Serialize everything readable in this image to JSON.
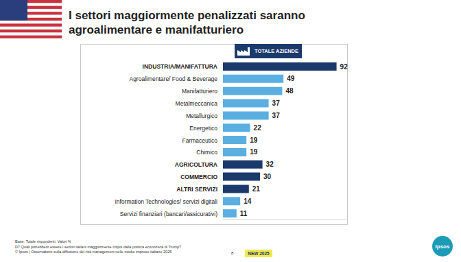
{
  "title": "I settori maggiormente penalizzati saranno agroalimentare e manifatturiero",
  "column_label": "TOTALE AZIENDE",
  "chart_data": {
    "type": "bar",
    "orientation": "horizontal",
    "categories": [
      "INDUSTRIA/MANIFATTURA",
      "Agroalimentare/ Food & Beverage",
      "Manifatturiero",
      "Metalmeccanica",
      "Metallurgico",
      "Energetico",
      "Farmaceutico",
      "Chimico",
      "AGRICOLTURA",
      "COMMERCIO",
      "ALTRI SERVIZI",
      "Information Technologies/ servizi digitali",
      "Servizi finanziari (bancari/assicurativi)"
    ],
    "values": [
      92,
      49,
      48,
      37,
      37,
      22,
      19,
      19,
      32,
      30,
      21,
      14,
      11
    ],
    "colors": [
      "#1b3a6b",
      "#5aafe0",
      "#5aafe0",
      "#5aafe0",
      "#5aafe0",
      "#5aafe0",
      "#5aafe0",
      "#5aafe0",
      "#1b3a6b",
      "#1b3a6b",
      "#1b3a6b",
      "#5aafe0",
      "#5aafe0"
    ],
    "xlim": [
      0,
      100
    ],
    "xticks": [],
    "tick_labels": "y",
    "data_labels": true,
    "grid": false
  },
  "footer": {
    "notes": [
      "Base: Totale rispondenti. Valori %",
      "D7 Quali potrebbero essere i settori italiani maggiormente colpiti dalla politica economica di Trump?",
      "© Ipsos | Osservatorio sulla diffusione del risk management nelle medie imprese italiane 2025"
    ],
    "page": "8",
    "badge": "NEW 2025",
    "logo": "Ipsos"
  }
}
